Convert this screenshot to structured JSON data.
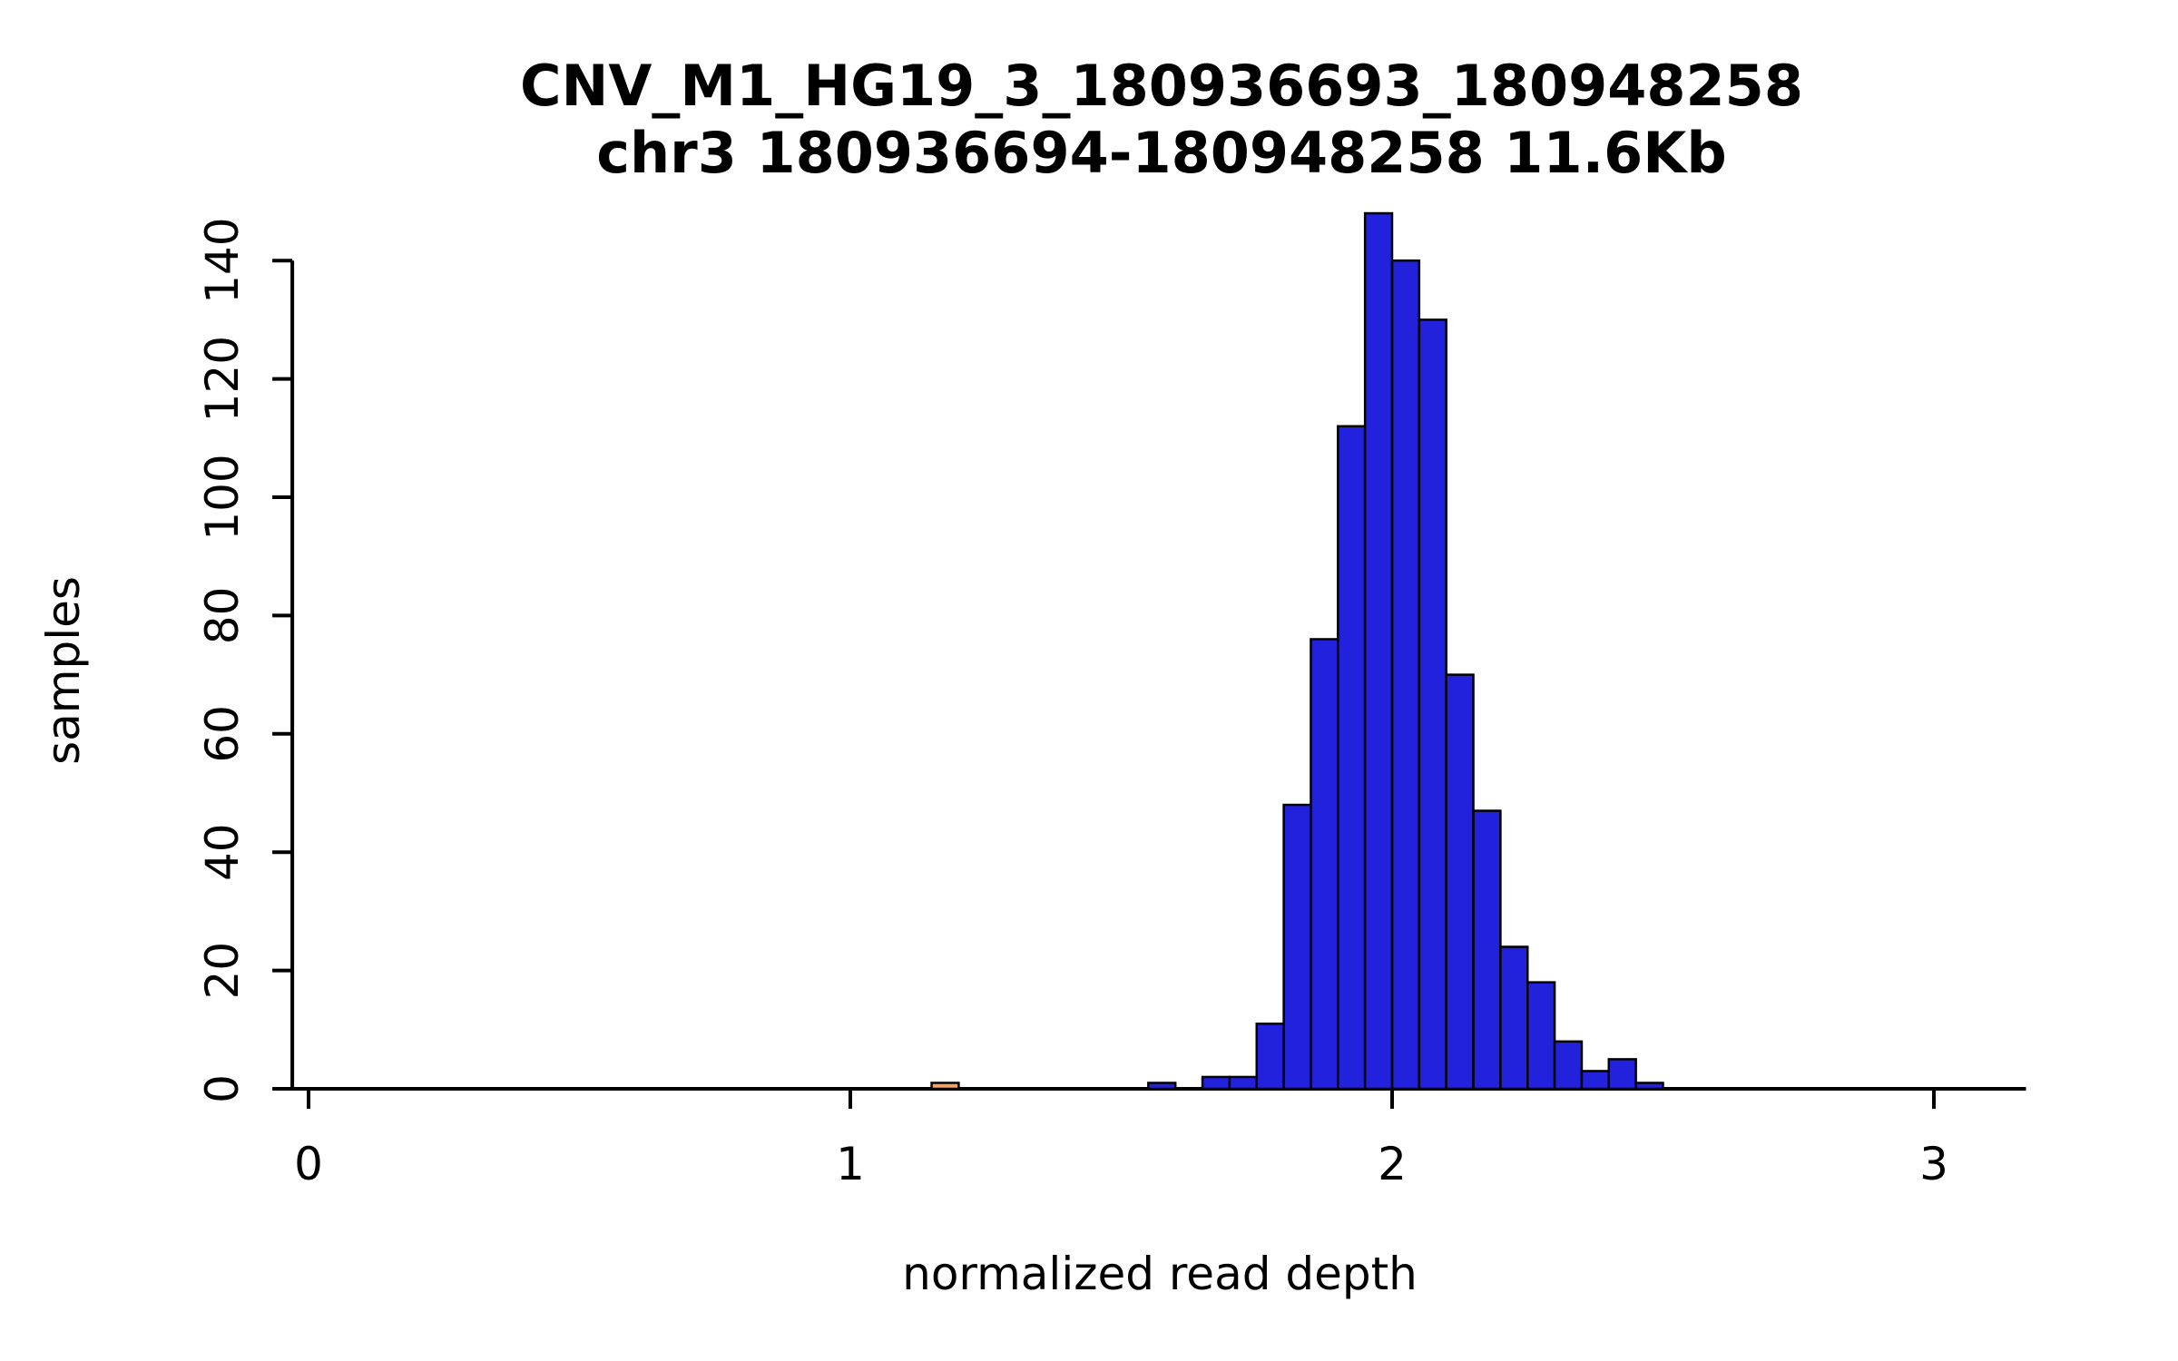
{
  "page": {
    "background": "#ffffff"
  },
  "chart_data": {
    "type": "histogram",
    "title": "CNV_M1_HG19_3_180936693_180948258",
    "subtitle": "chr3 180936694-180948258 11.6Kb",
    "xlabel": "normalized read depth",
    "ylabel": "samples",
    "xlim": [
      -0.03,
      3.17
    ],
    "ylim": [
      0,
      150
    ],
    "x_ticks": [
      0,
      1,
      2,
      3
    ],
    "y_ticks": [
      0,
      20,
      40,
      60,
      80,
      100,
      120,
      140
    ],
    "grid": false,
    "legend": "none",
    "bin_width": 0.05,
    "bar_fill": "#2222DD",
    "bar_stroke": "#000000",
    "outlier_fill": "#F4A460",
    "axis_color": "#000000",
    "bins": [
      {
        "x0": 1.15,
        "count": 1,
        "color": "#F4A460"
      },
      {
        "x0": 1.55,
        "count": 1
      },
      {
        "x0": 1.65,
        "count": 2
      },
      {
        "x0": 1.7,
        "count": 2
      },
      {
        "x0": 1.75,
        "count": 11
      },
      {
        "x0": 1.8,
        "count": 48
      },
      {
        "x0": 1.85,
        "count": 76
      },
      {
        "x0": 1.9,
        "count": 112
      },
      {
        "x0": 1.95,
        "count": 148
      },
      {
        "x0": 2.0,
        "count": 140
      },
      {
        "x0": 2.05,
        "count": 130
      },
      {
        "x0": 2.1,
        "count": 70
      },
      {
        "x0": 2.15,
        "count": 47
      },
      {
        "x0": 2.2,
        "count": 24
      },
      {
        "x0": 2.25,
        "count": 18
      },
      {
        "x0": 2.3,
        "count": 8
      },
      {
        "x0": 2.35,
        "count": 3
      },
      {
        "x0": 2.4,
        "count": 5
      },
      {
        "x0": 2.45,
        "count": 1
      }
    ]
  }
}
